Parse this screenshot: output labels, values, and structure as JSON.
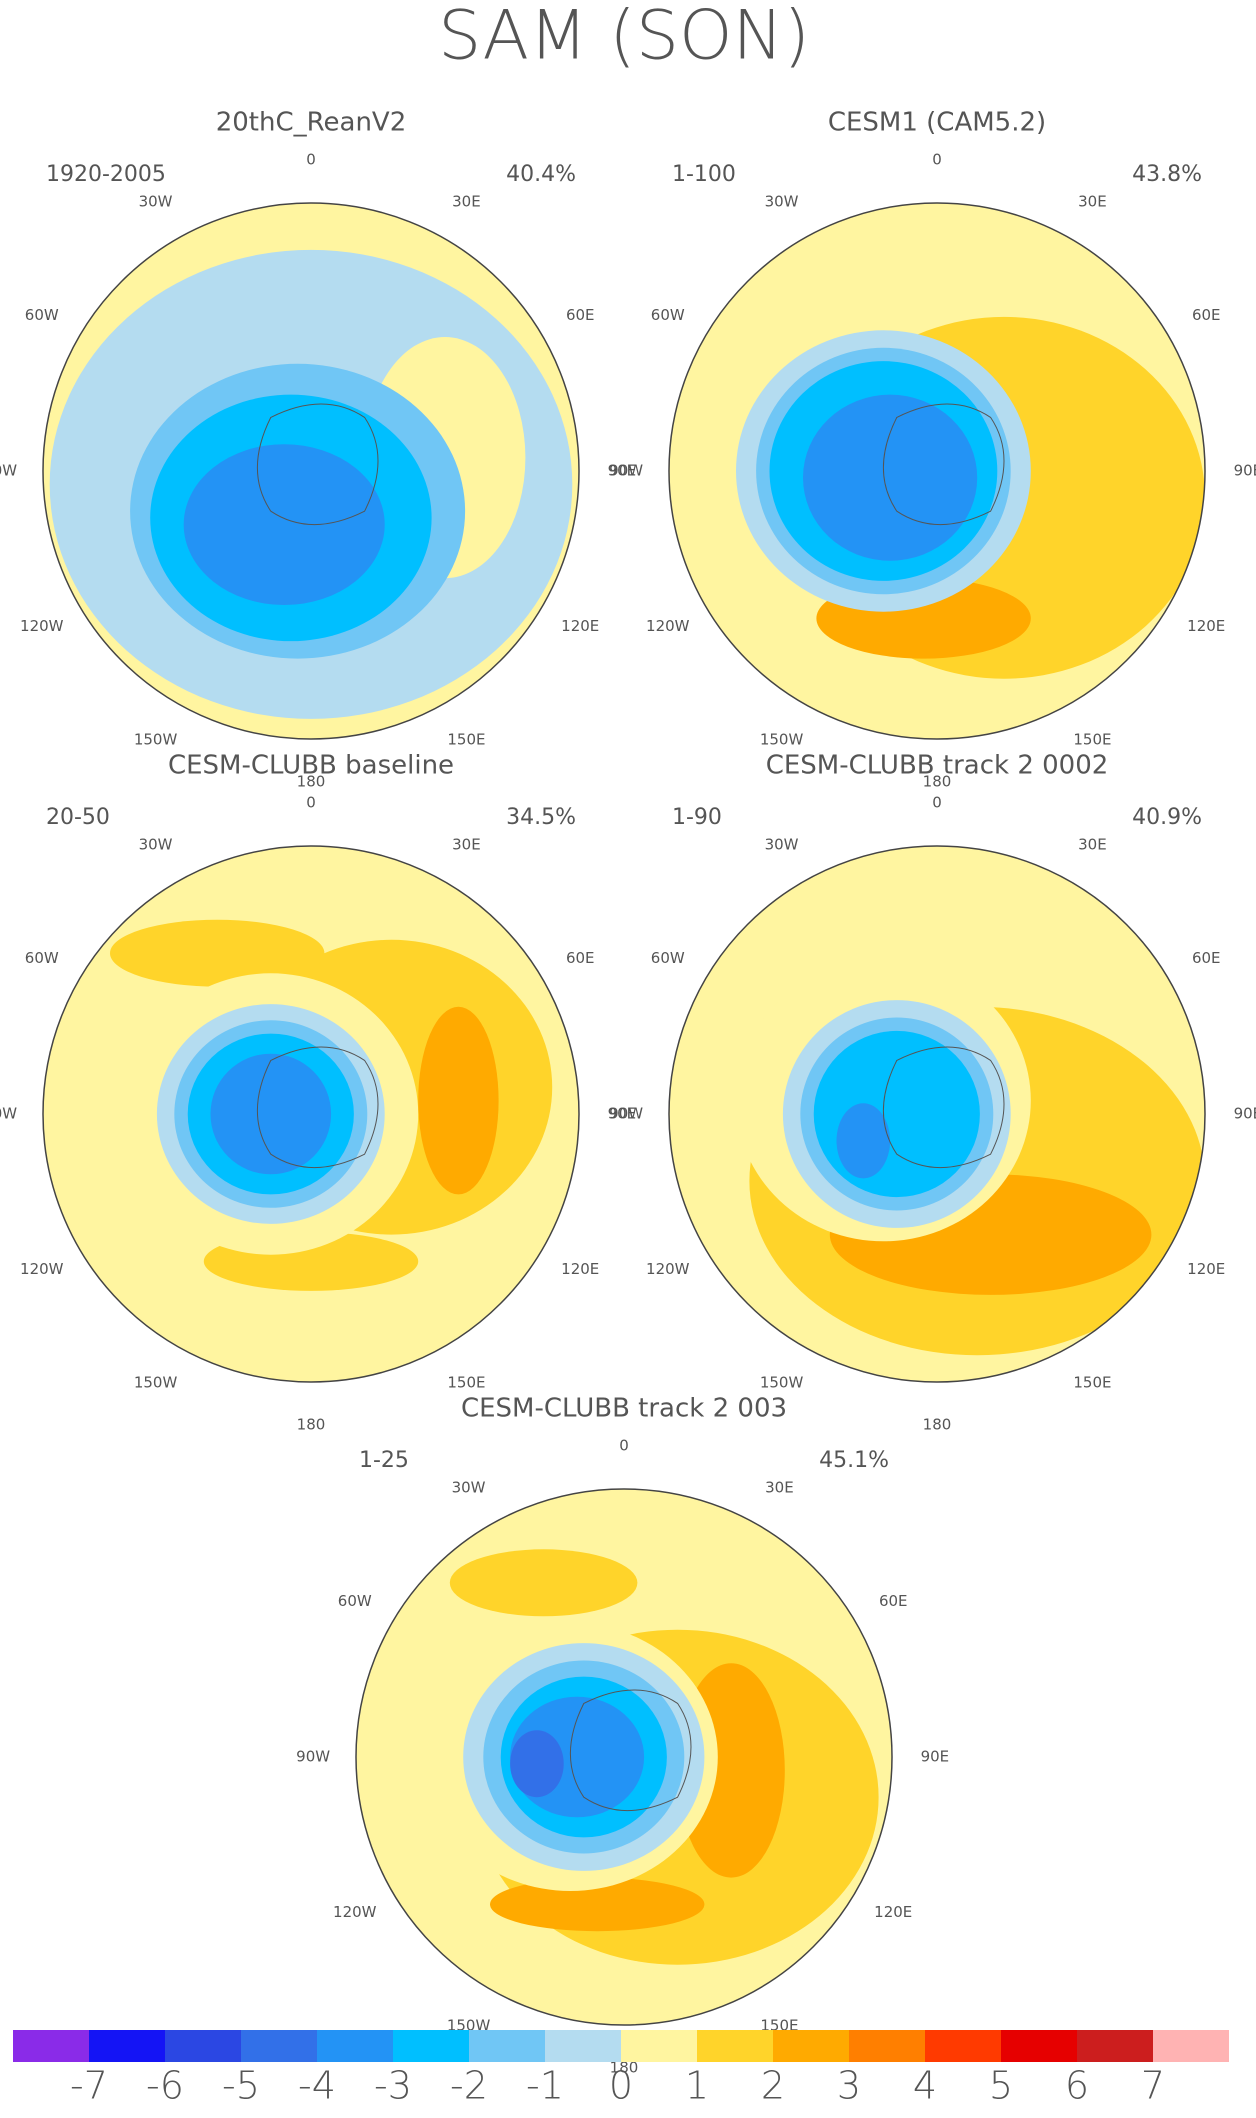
{
  "title": "SAM (SON)",
  "panels": [
    {
      "title": "20thC_ReanV2",
      "period": "1920-2005",
      "variance": "40.4%"
    },
    {
      "title": "CESM1 (CAM5.2)",
      "period": "1-100",
      "variance": "43.8%"
    },
    {
      "title": "CESM-CLUBB baseline",
      "period": "20-50",
      "variance": "34.5%"
    },
    {
      "title": "CESM-CLUBB track 2 0002",
      "period": "1-90",
      "variance": "40.9%"
    },
    {
      "title": "CESM-CLUBB track 2 003",
      "period": "1-25",
      "variance": "45.1%"
    }
  ],
  "longitude_labels": [
    "0",
    "30E",
    "60E",
    "90E",
    "120E",
    "150E",
    "180",
    "150W",
    "120W",
    "90W",
    "60W",
    "30W"
  ],
  "colorbar": {
    "labels": [
      -7,
      -6,
      -5,
      -4,
      -3,
      -2,
      -1,
      0,
      1,
      2,
      3,
      4,
      5,
      6,
      7
    ],
    "colors": [
      "#8a2be8",
      "#1414f5",
      "#2b47e3",
      "#3270e8",
      "#2393f5",
      "#00bfff",
      "#70c6f5",
      "#b4dcf0",
      "#fff5a0",
      "#ffd42a",
      "#ffaa00",
      "#ff7f00",
      "#ff3a00",
      "#e60000",
      "#cc1e1e",
      "#ffb3b3"
    ]
  }
}
